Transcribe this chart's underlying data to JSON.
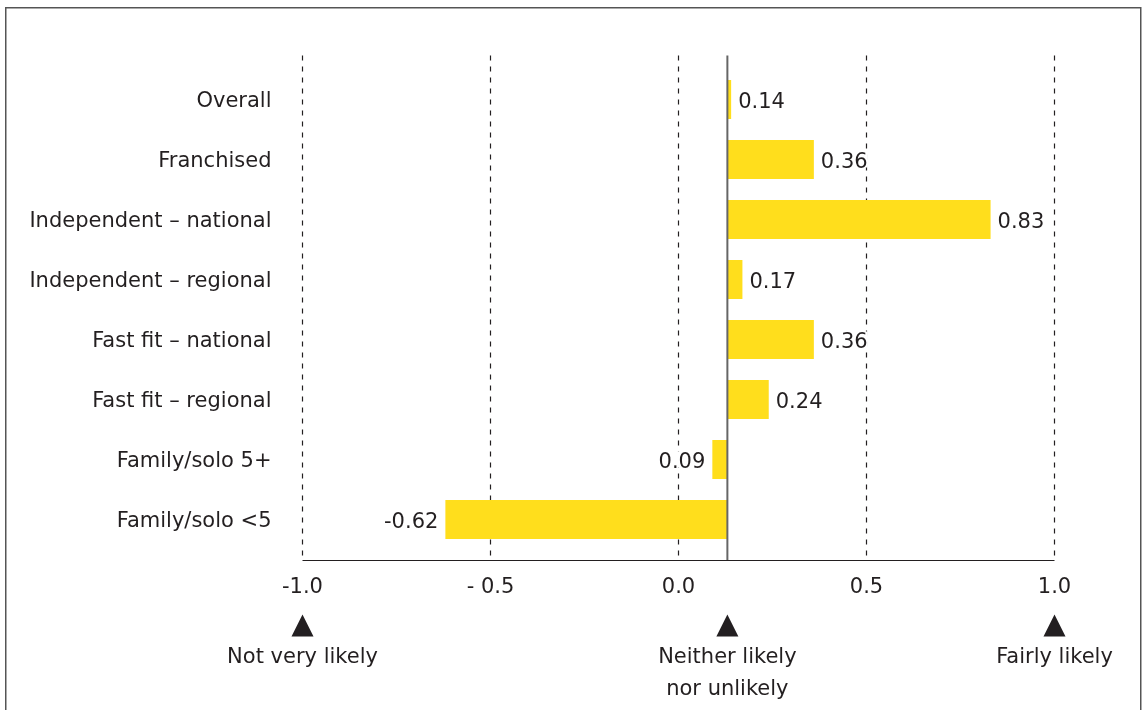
{
  "chart_data": {
    "type": "bar",
    "orientation": "horizontal",
    "categories": [
      "Overall",
      "Franchised",
      "Independent – national",
      "Independent – regional",
      "Fast fit – national",
      "Fast fit – regional",
      "Family/solo 5+",
      "Family/solo <5"
    ],
    "base": [
      0.13,
      0.13,
      0.13,
      0.13,
      0.13,
      0.13,
      0.13,
      0.13
    ],
    "values": [
      0.01,
      0.23,
      0.7,
      0.04,
      0.23,
      0.11,
      -0.04,
      -0.75
    ],
    "value_labels": [
      "0.14",
      "0.36",
      "0.83",
      "0.17",
      "0.36",
      "0.24",
      "0.09",
      "-0.62"
    ],
    "color": "#ffde1c",
    "xlim": [
      -1.0,
      1.0
    ],
    "xticks": [
      {
        "value": -1.0,
        "label": "-1.0"
      },
      {
        "value": -0.5,
        "label": "- 0.5"
      },
      {
        "value": 0,
        "label": "0.0"
      },
      {
        "value": 0.5,
        "label": "0.5"
      },
      {
        "value": 1.0,
        "label": "1.0"
      }
    ],
    "grid": "x",
    "ref_lines": [
      {
        "axis": "x",
        "value": 0.13,
        "color": "#666666"
      }
    ],
    "annotations": [
      "Not very likely",
      "Neither likely nor unlikely",
      "Fairly likely"
    ]
  }
}
